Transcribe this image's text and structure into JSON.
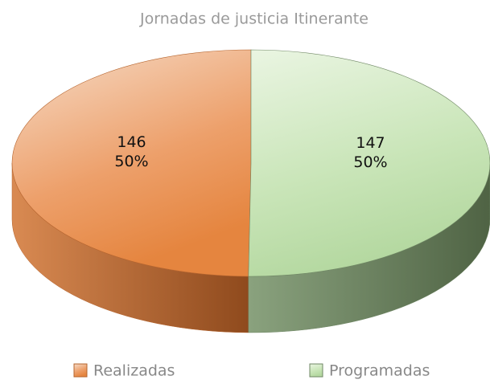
{
  "chart_data": {
    "type": "pie3d",
    "title": "Jornadas de justicia Itinerante",
    "categories": [
      "Realizadas",
      "Programadas"
    ],
    "values": [
      146,
      147
    ],
    "percent_labels": [
      "50%",
      "50%"
    ],
    "colors": [
      "#e8945a",
      "#c6e4b5"
    ],
    "side_colors": [
      "#b5642e",
      "#6f8764"
    ],
    "legend": "bottom"
  }
}
